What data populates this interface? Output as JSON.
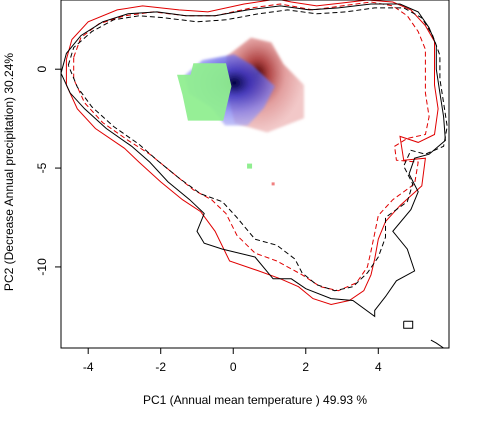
{
  "chart_data": {
    "type": "scatter",
    "title": "",
    "xlabel": "PC1 (Annual mean temperature ) 49.93 %",
    "ylabel": "PC2 (Decrease Annual precipitation) 30.24%",
    "xlim": [
      -4.75,
      5.95
    ],
    "ylim": [
      -14.1,
      3.5
    ],
    "xticks": [
      -4,
      -2,
      0,
      2,
      4
    ],
    "yticks": [
      0,
      -5,
      -10
    ],
    "grid": false,
    "legend": "none",
    "colors": {
      "green_density": "#90ee90",
      "blue_density": "#0000cc",
      "red_density": "#cc3333",
      "black_contour": "#000000",
      "red_contour": "#e00000"
    },
    "density_cores": [
      {
        "name": "red",
        "center": [
          0.55,
          0.0
        ],
        "extent": [
          [
            -0.3,
            1.95
          ],
          [
            -3.2,
            1.6
          ]
        ]
      },
      {
        "name": "blue",
        "center": [
          0.2,
          -0.3
        ],
        "extent": [
          [
            -1.35,
            1.15
          ],
          [
            -2.85,
            0.75
          ]
        ]
      },
      {
        "name": "green",
        "center": [
          -0.5,
          -0.8
        ],
        "extent": [
          [
            -1.55,
            -0.05
          ],
          [
            -2.6,
            0.3
          ]
        ]
      }
    ],
    "isolated_points": [
      {
        "series": "green",
        "x": 0.45,
        "y": -4.9
      },
      {
        "series": "red",
        "x": 1.1,
        "y": -5.8
      }
    ],
    "contours": [
      {
        "series": "red",
        "style": "solid",
        "points": [
          [
            -4.6,
            0.5
          ],
          [
            -4.45,
            1.5
          ],
          [
            -4.0,
            2.4
          ],
          [
            -3.2,
            3.0
          ],
          [
            -2.5,
            3.2
          ],
          [
            -1.5,
            3.0
          ],
          [
            -0.7,
            2.9
          ],
          [
            0.3,
            3.3
          ],
          [
            1.2,
            3.55
          ],
          [
            1.6,
            3.4
          ],
          [
            2.3,
            3.2
          ],
          [
            3.0,
            3.35
          ],
          [
            3.7,
            3.5
          ],
          [
            4.4,
            3.4
          ],
          [
            4.9,
            3.0
          ],
          [
            5.3,
            2.2
          ],
          [
            5.55,
            1.4
          ],
          [
            5.55,
            0.4
          ],
          [
            5.55,
            -0.8
          ],
          [
            5.65,
            -2.0
          ],
          [
            5.55,
            -3.3
          ],
          [
            5.1,
            -3.7
          ],
          [
            4.6,
            -3.4
          ],
          [
            4.7,
            -4.6
          ],
          [
            5.3,
            -4.5
          ],
          [
            5.2,
            -5.9
          ],
          [
            4.6,
            -6.9
          ],
          [
            4.2,
            -7.7
          ],
          [
            4.0,
            -8.6
          ],
          [
            3.9,
            -9.6
          ],
          [
            3.8,
            -10.4
          ],
          [
            3.6,
            -11.2
          ],
          [
            3.2,
            -11.7
          ],
          [
            2.7,
            -11.9
          ],
          [
            2.2,
            -11.6
          ],
          [
            1.8,
            -11.0
          ],
          [
            1.3,
            -10.6
          ],
          [
            0.7,
            -10.2
          ],
          [
            -0.1,
            -9.7
          ],
          [
            -0.5,
            -8.2
          ],
          [
            -0.9,
            -7.2
          ],
          [
            -1.4,
            -6.6
          ],
          [
            -2.0,
            -5.7
          ],
          [
            -2.6,
            -4.7
          ],
          [
            -3.0,
            -4.0
          ],
          [
            -3.8,
            -3.0
          ],
          [
            -4.3,
            -2.0
          ],
          [
            -4.6,
            -0.8
          ],
          [
            -4.6,
            0.5
          ]
        ]
      },
      {
        "series": "red",
        "style": "dashed",
        "points": [
          [
            -4.4,
            0.6
          ],
          [
            -4.2,
            1.6
          ],
          [
            -3.7,
            2.3
          ],
          [
            -3.0,
            2.7
          ],
          [
            -2.2,
            2.9
          ],
          [
            -1.3,
            2.7
          ],
          [
            -0.5,
            2.7
          ],
          [
            0.5,
            3.1
          ],
          [
            1.3,
            3.3
          ],
          [
            2.2,
            3.0
          ],
          [
            3.0,
            3.2
          ],
          [
            3.8,
            3.4
          ],
          [
            4.4,
            3.2
          ],
          [
            4.8,
            2.7
          ],
          [
            5.1,
            1.9
          ],
          [
            5.3,
            1.0
          ],
          [
            5.3,
            0.0
          ],
          [
            5.3,
            -1.2
          ],
          [
            5.4,
            -2.4
          ],
          [
            5.3,
            -3.3
          ],
          [
            4.8,
            -3.5
          ],
          [
            4.45,
            -3.9
          ],
          [
            4.5,
            -4.6
          ],
          [
            5.1,
            -4.7
          ],
          [
            5.0,
            -5.8
          ],
          [
            4.4,
            -6.6
          ],
          [
            4.0,
            -7.4
          ],
          [
            3.9,
            -8.3
          ],
          [
            3.8,
            -9.2
          ],
          [
            3.7,
            -10.0
          ],
          [
            3.4,
            -10.8
          ],
          [
            2.9,
            -11.2
          ],
          [
            2.4,
            -11.0
          ],
          [
            1.9,
            -10.4
          ],
          [
            1.2,
            -9.7
          ],
          [
            0.6,
            -9.3
          ],
          [
            0.1,
            -8.4
          ],
          [
            -0.2,
            -7.3
          ],
          [
            -0.6,
            -6.6
          ],
          [
            -1.1,
            -6.1
          ],
          [
            -1.7,
            -5.2
          ],
          [
            -2.3,
            -4.3
          ],
          [
            -2.9,
            -3.6
          ],
          [
            -3.6,
            -2.7
          ],
          [
            -4.1,
            -1.7
          ],
          [
            -4.4,
            -0.5
          ],
          [
            -4.4,
            0.6
          ]
        ]
      },
      {
        "series": "black",
        "style": "solid",
        "points": [
          [
            -4.75,
            -0.2
          ],
          [
            -4.6,
            0.8
          ],
          [
            -4.2,
            1.7
          ],
          [
            -3.6,
            2.4
          ],
          [
            -2.9,
            2.8
          ],
          [
            -2.1,
            2.9
          ],
          [
            -1.3,
            2.7
          ],
          [
            -0.5,
            2.7
          ],
          [
            0.4,
            3.0
          ],
          [
            1.3,
            3.2
          ],
          [
            2.1,
            3.0
          ],
          [
            2.9,
            3.1
          ],
          [
            3.8,
            3.3
          ],
          [
            4.6,
            3.3
          ],
          [
            5.1,
            2.9
          ],
          [
            5.4,
            2.1
          ],
          [
            5.6,
            1.2
          ],
          [
            5.6,
            0.0
          ],
          [
            5.7,
            -1.2
          ],
          [
            5.8,
            -2.4
          ],
          [
            5.85,
            -3.6
          ],
          [
            5.4,
            -4.3
          ],
          [
            5.0,
            -4.5
          ],
          [
            4.85,
            -5.3
          ],
          [
            5.1,
            -6.2
          ],
          [
            4.9,
            -7.1
          ],
          [
            4.4,
            -8.2
          ],
          [
            4.8,
            -9.1
          ],
          [
            5.0,
            -10.2
          ],
          [
            4.5,
            -10.7
          ],
          [
            4.2,
            -11.5
          ],
          [
            3.9,
            -12.2
          ],
          [
            3.9,
            -12.5
          ],
          [
            3.3,
            -11.7
          ],
          [
            2.7,
            -11.6
          ],
          [
            2.0,
            -11.1
          ],
          [
            1.6,
            -10.6
          ],
          [
            1.1,
            -10.6
          ],
          [
            0.6,
            -9.5
          ],
          [
            -0.3,
            -9.1
          ],
          [
            -0.8,
            -8.8
          ],
          [
            -1.0,
            -8.2
          ],
          [
            -0.8,
            -7.3
          ],
          [
            -1.2,
            -6.6
          ],
          [
            -1.8,
            -5.7
          ],
          [
            -2.3,
            -4.7
          ],
          [
            -2.8,
            -3.9
          ],
          [
            -3.5,
            -3.0
          ],
          [
            -4.1,
            -2.0
          ],
          [
            -4.5,
            -1.2
          ],
          [
            -4.75,
            -0.2
          ]
        ]
      },
      {
        "series": "black",
        "style": "dashed",
        "points": [
          [
            -4.55,
            0.2
          ],
          [
            -4.4,
            1.1
          ],
          [
            -3.9,
            1.9
          ],
          [
            -3.3,
            2.5
          ],
          [
            -2.6,
            2.7
          ],
          [
            -1.9,
            2.6
          ],
          [
            -1.0,
            2.4
          ],
          [
            -0.2,
            2.5
          ],
          [
            0.7,
            2.8
          ],
          [
            1.5,
            3.0
          ],
          [
            2.3,
            2.8
          ],
          [
            3.1,
            2.9
          ],
          [
            3.9,
            3.1
          ],
          [
            4.7,
            3.1
          ],
          [
            5.2,
            2.6
          ],
          [
            5.5,
            1.7
          ],
          [
            5.7,
            0.7
          ],
          [
            5.7,
            -0.5
          ],
          [
            5.8,
            -1.7
          ],
          [
            5.9,
            -2.9
          ],
          [
            5.8,
            -3.9
          ],
          [
            5.3,
            -4.3
          ],
          [
            4.9,
            -4.1
          ],
          [
            4.7,
            -4.9
          ],
          [
            4.95,
            -5.8
          ],
          [
            4.8,
            -6.7
          ],
          [
            4.2,
            -7.5
          ],
          [
            4.2,
            -8.5
          ],
          [
            4.0,
            -9.5
          ],
          [
            3.7,
            -10.3
          ],
          [
            3.3,
            -11.0
          ],
          [
            2.8,
            -11.2
          ],
          [
            2.3,
            -10.9
          ],
          [
            1.9,
            -10.3
          ],
          [
            1.7,
            -9.6
          ],
          [
            1.2,
            -8.9
          ],
          [
            0.6,
            -8.6
          ],
          [
            0.1,
            -7.5
          ],
          [
            -0.3,
            -6.7
          ],
          [
            -0.9,
            -6.3
          ],
          [
            -1.5,
            -5.5
          ],
          [
            -2.1,
            -4.6
          ],
          [
            -2.6,
            -3.8
          ],
          [
            -3.3,
            -2.9
          ],
          [
            -3.9,
            -1.9
          ],
          [
            -4.3,
            -0.9
          ],
          [
            -4.55,
            0.2
          ]
        ]
      },
      {
        "series": "black",
        "style": "solid",
        "points": [
          [
            4.7,
            -12.75
          ],
          [
            4.95,
            -12.75
          ],
          [
            4.95,
            -13.1
          ],
          [
            4.7,
            -13.1
          ],
          [
            4.7,
            -12.75
          ]
        ]
      },
      {
        "series": "black",
        "style": "solid",
        "points": [
          [
            5.45,
            -13.7
          ],
          [
            5.6,
            -13.85
          ],
          [
            5.8,
            -14.1
          ]
        ]
      }
    ]
  }
}
